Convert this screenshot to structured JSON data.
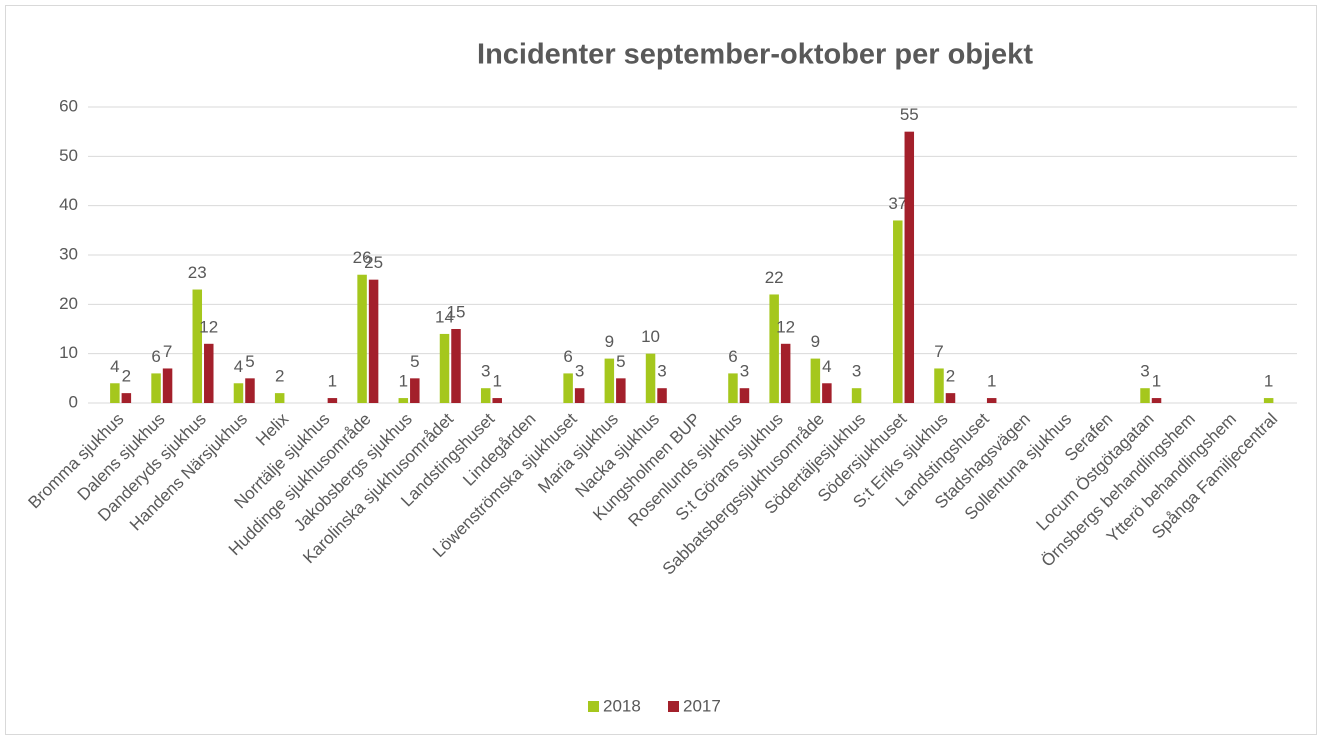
{
  "chart_data": {
    "type": "bar",
    "title": "Incidenter september-oktober per objekt",
    "categories": [
      "Bromma sjukhus",
      "Dalens sjukhus",
      "Danderyds sjukhus",
      "Handens Närsjukhus",
      "Helix",
      "Norrtälje sjukhus",
      "Huddinge sjukhusområde",
      "Jakobsbergs sjukhus",
      "Karolinska sjukhusområdet",
      "Landstingshuset",
      "Lindegården",
      "Löwenströmska sjukhuset",
      "Maria sjukhus",
      "Nacka sjukhus",
      "Kungsholmen BUP",
      "Rosenlunds sjukhus",
      "S:t Görans sjukhus",
      "Sabbatsbergssjukhusområde",
      "Södertäljesjukhus",
      "Södersjukhuset",
      "S:t Eriks sjukhus",
      "Landstingshuset",
      "Stadshagsvägen",
      "Sollentuna sjukhus",
      "Serafen",
      "Locum Östgötagatan",
      "Örnsbergs behandlingshem",
      "Ytterö behandlingshem",
      "Spånga Familjecentral"
    ],
    "series": [
      {
        "name": "2018",
        "color": "#a5c71d",
        "values": [
          4,
          6,
          23,
          4,
          2,
          null,
          26,
          1,
          14,
          3,
          null,
          6,
          9,
          10,
          null,
          6,
          22,
          9,
          3,
          37,
          7,
          null,
          null,
          null,
          null,
          3,
          null,
          null,
          1
        ]
      },
      {
        "name": "2017",
        "color": "#a3202b",
        "values": [
          2,
          7,
          12,
          5,
          null,
          1,
          25,
          5,
          15,
          1,
          null,
          3,
          5,
          3,
          null,
          3,
          12,
          4,
          null,
          55,
          2,
          1,
          null,
          null,
          null,
          1,
          null,
          null,
          null
        ]
      }
    ],
    "ylim": [
      0,
      60
    ],
    "yticks": [
      0,
      10,
      20,
      30,
      40,
      50,
      60
    ],
    "grid": true,
    "legend": "bottom"
  }
}
